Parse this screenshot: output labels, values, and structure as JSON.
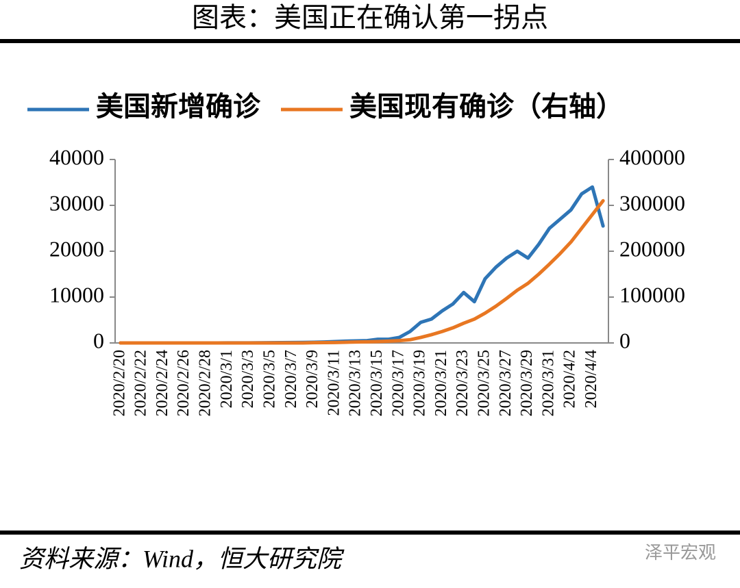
{
  "title": "图表：美国正在确认第一拐点",
  "source": "资料来源：Wind，恒大研究院",
  "watermark": "泽平宏观",
  "chart_data": {
    "type": "line",
    "categories": [
      "2020/2/20",
      null,
      "2020/2/22",
      null,
      "2020/2/24",
      null,
      "2020/2/26",
      null,
      "2020/2/28",
      null,
      "2020/3/1",
      null,
      "2020/3/3",
      null,
      "2020/3/5",
      null,
      "2020/3/7",
      null,
      "2020/3/9",
      null,
      "2020/3/11",
      null,
      "2020/3/13",
      null,
      "2020/3/15",
      null,
      "2020/3/17",
      null,
      "2020/3/19",
      null,
      "2020/3/21",
      null,
      "2020/3/23",
      null,
      "2020/3/25",
      null,
      "2020/3/27",
      null,
      "2020/3/29",
      null,
      "2020/3/31",
      null,
      "2020/4/2",
      null,
      "2020/4/4",
      null
    ],
    "series": [
      {
        "name": "美国新增确诊",
        "color": "#2e75b6",
        "values": [
          0,
          0,
          0,
          0,
          0,
          0,
          0,
          0,
          5,
          5,
          10,
          15,
          20,
          30,
          50,
          70,
          100,
          120,
          150,
          200,
          300,
          400,
          450,
          500,
          800,
          800,
          1200,
          2500,
          4500,
          5200,
          7000,
          8500,
          11000,
          9000,
          14000,
          16500,
          18500,
          20000,
          18500,
          21500,
          25000,
          27000,
          29000,
          32500,
          34000,
          25500
        ]
      },
      {
        "name": "美国现有确诊（右轴）",
        "color": "#e87722",
        "axis": "y2",
        "values": [
          0,
          0,
          0,
          0,
          0,
          0,
          0,
          0,
          0,
          0,
          0,
          0,
          0,
          0,
          0,
          0,
          0,
          0,
          500,
          700,
          1000,
          1500,
          2000,
          2500,
          3000,
          4000,
          5000,
          7000,
          12000,
          18000,
          25000,
          33000,
          43000,
          52000,
          65000,
          80000,
          97000,
          115000,
          130000,
          150000,
          172000,
          195000,
          220000,
          250000,
          280000,
          310000
        ]
      }
    ],
    "ylim": [
      0,
      40000
    ],
    "yticks": [
      0,
      10000,
      20000,
      30000,
      40000
    ],
    "y2lim": [
      0,
      400000
    ],
    "y2ticks": [
      0,
      100000,
      200000,
      300000,
      400000
    ],
    "legend": "top"
  }
}
